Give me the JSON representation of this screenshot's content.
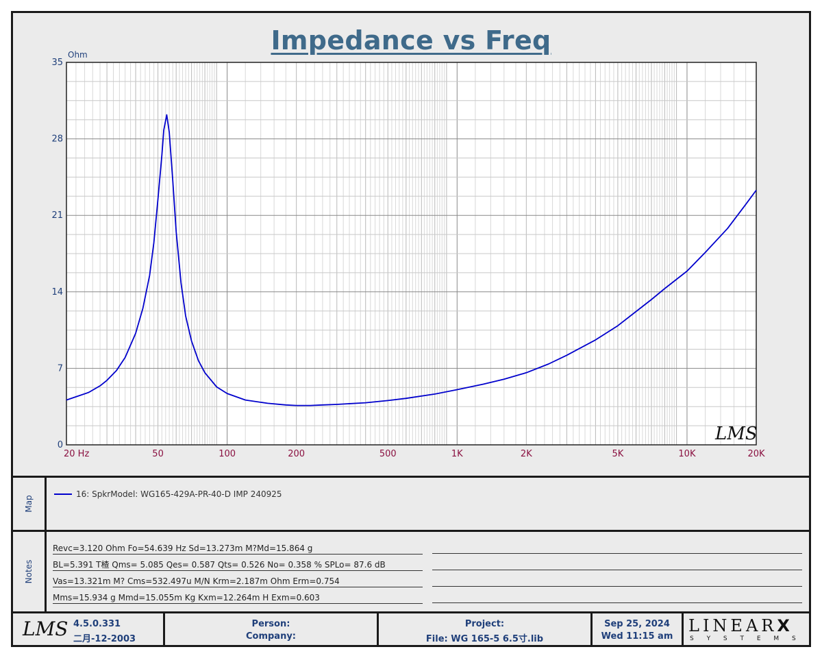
{
  "title": "Impedance vs Freq",
  "chart_data": {
    "type": "line",
    "title": "Impedance vs Freq",
    "ylabel": "Ohm",
    "xlabel": "",
    "xscale": "log",
    "xlim": [
      20,
      20000
    ],
    "ylim": [
      0,
      35
    ],
    "grid": true,
    "x_tick_labels": [
      {
        "value": 20,
        "label": "20  Hz"
      },
      {
        "value": 50,
        "label": "50"
      },
      {
        "value": 100,
        "label": "100"
      },
      {
        "value": 200,
        "label": "200"
      },
      {
        "value": 500,
        "label": "500"
      },
      {
        "value": 1000,
        "label": "1K"
      },
      {
        "value": 2000,
        "label": "2K"
      },
      {
        "value": 5000,
        "label": "5K"
      },
      {
        "value": 10000,
        "label": "10K"
      },
      {
        "value": 20000,
        "label": "20K"
      }
    ],
    "y_tick_labels": [
      "0",
      "7",
      "14",
      "21",
      "28",
      "35"
    ],
    "series": [
      {
        "name": "16: SpkrModel: WG165-429A-PR-40-D IMP 240925",
        "color": "#0000cc",
        "x": [
          20,
          22,
          25,
          28,
          30,
          33,
          36,
          40,
          43,
          46,
          48,
          50,
          52,
          53,
          54.6,
          56,
          58,
          60,
          63,
          66,
          70,
          75,
          80,
          90,
          100,
          120,
          150,
          180,
          200,
          230,
          260,
          300,
          400,
          500,
          600,
          800,
          1000,
          1300,
          1600,
          2000,
          2500,
          3000,
          4000,
          5000,
          6000,
          7000,
          8000,
          10000,
          12000,
          15000,
          18000,
          20000
        ],
        "y": [
          4.1,
          4.4,
          4.8,
          5.4,
          5.9,
          6.8,
          8.0,
          10.2,
          12.5,
          15.5,
          18.5,
          22.5,
          26.5,
          28.8,
          30.2,
          28.6,
          24.2,
          19.5,
          14.8,
          11.8,
          9.5,
          7.7,
          6.6,
          5.3,
          4.7,
          4.1,
          3.8,
          3.65,
          3.6,
          3.6,
          3.65,
          3.7,
          3.85,
          4.05,
          4.25,
          4.65,
          5.05,
          5.55,
          6.0,
          6.6,
          7.4,
          8.2,
          9.6,
          10.9,
          12.2,
          13.3,
          14.3,
          15.9,
          17.6,
          19.8,
          22.0,
          23.3
        ]
      }
    ]
  },
  "map": {
    "side_label": "Map",
    "legend_text": "16: SpkrModel: WG165-429A-PR-40-D IMP 240925",
    "legend_color": "#0000cc"
  },
  "notes": {
    "side_label": "Notes",
    "lines": [
      "Revc=3.120 Ohm  Fo=54.639 Hz  Sd=13.273m M?Md=15.864 g",
      "BL=5.391 T楂  Qms= 5.085  Qes= 0.587  Qts= 0.526  No= 0.358 %  SPLo= 87.6 dB",
      "Vas=13.321m M? Cms=532.497u M/N  Krm=2.187m Ohm  Erm=0.754",
      "Mms=15.934 g  Mmd=15.055m Kg  Kxm=12.264m H  Exm=0.603"
    ]
  },
  "footer": {
    "logo": "LMS",
    "version": "4.5.0.331",
    "version_date": "二月-12-2003",
    "person_label": "Person:",
    "company_label": "Company:",
    "project_label": "Project:",
    "file_label": "File: WG 165-5 6.5寸.lib",
    "date": "Sep 25, 2024",
    "time": "Wed 11:15 am",
    "brand_top": "LINEAR",
    "brand_x": "X",
    "brand_bottom": "S Y S T E M S"
  },
  "watermark": "LMS"
}
